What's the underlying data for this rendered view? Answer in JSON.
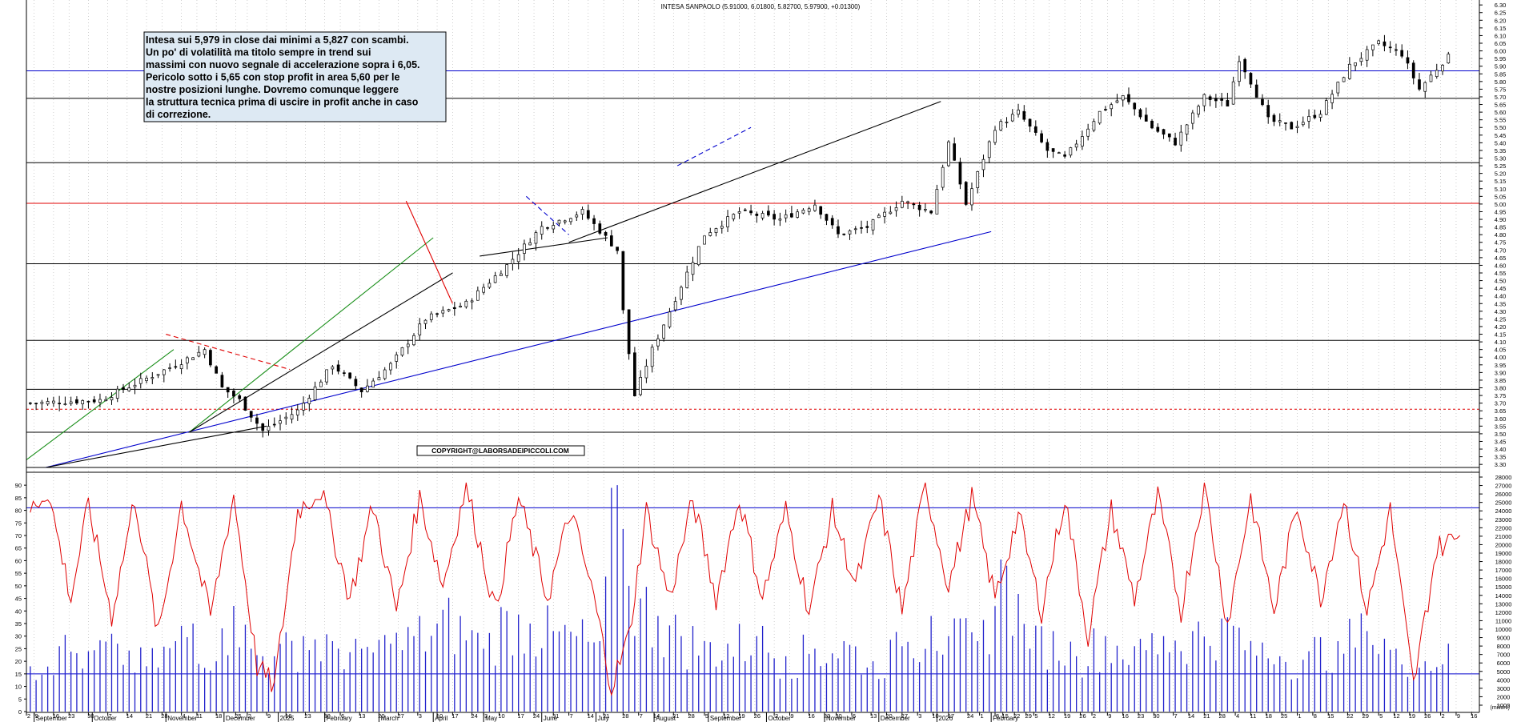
{
  "chart_data": [
    {
      "type": "candlestick",
      "title": "INTESA SANPAOLO (5.91000, 6.01800, 5.82700, 5.97900, +0.01300)",
      "ylim": [
        3.25,
        6.3
      ],
      "y_ticks": [
        "3.30",
        "3.35",
        "3.40",
        "3.45",
        "3.50",
        "3.55",
        "3.60",
        "3.65",
        "3.70",
        "3.75",
        "3.80",
        "3.85",
        "3.90",
        "3.95",
        "4.00",
        "4.05",
        "4.10",
        "4.15",
        "4.20",
        "4.25",
        "4.30",
        "4.35",
        "4.40",
        "4.45",
        "4.50",
        "4.55",
        "4.60",
        "4.65",
        "4.70",
        "4.75",
        "4.80",
        "4.85",
        "4.90",
        "4.95",
        "5.00",
        "5.05",
        "5.10",
        "5.15",
        "5.20",
        "5.25",
        "5.30",
        "5.35",
        "5.40",
        "5.45",
        "5.50",
        "5.55",
        "5.60",
        "5.65",
        "5.70",
        "5.75",
        "5.80",
        "5.85",
        "5.90",
        "5.95",
        "6.00",
        "6.05",
        "6.10",
        "6.15",
        "6.20",
        "6.25",
        "6.30"
      ],
      "price_path": [
        [
          0,
          3.7
        ],
        [
          12,
          3.72
        ],
        [
          25,
          3.95
        ],
        [
          30,
          4.05
        ],
        [
          33,
          3.8
        ],
        [
          36,
          3.72
        ],
        [
          40,
          3.52
        ],
        [
          46,
          3.65
        ],
        [
          52,
          3.95
        ],
        [
          57,
          3.78
        ],
        [
          62,
          3.95
        ],
        [
          68,
          4.25
        ],
        [
          75,
          4.35
        ],
        [
          82,
          4.6
        ],
        [
          88,
          4.85
        ],
        [
          95,
          4.95
        ],
        [
          101,
          4.7
        ],
        [
          102,
          4.3
        ],
        [
          104,
          3.75
        ],
        [
          107,
          4.05
        ],
        [
          110,
          4.3
        ],
        [
          116,
          4.8
        ],
        [
          122,
          4.95
        ],
        [
          129,
          4.9
        ],
        [
          135,
          5.0
        ],
        [
          139,
          4.8
        ],
        [
          144,
          4.85
        ],
        [
          150,
          5.02
        ],
        [
          155,
          4.95
        ],
        [
          158,
          5.4
        ],
        [
          161,
          5.0
        ],
        [
          166,
          5.5
        ],
        [
          170,
          5.6
        ],
        [
          175,
          5.35
        ],
        [
          178,
          5.3
        ],
        [
          184,
          5.6
        ],
        [
          188,
          5.7
        ],
        [
          193,
          5.5
        ],
        [
          197,
          5.4
        ],
        [
          202,
          5.7
        ],
        [
          206,
          5.65
        ],
        [
          208,
          5.95
        ],
        [
          210,
          5.8
        ],
        [
          213,
          5.55
        ],
        [
          217,
          5.5
        ],
        [
          222,
          5.6
        ],
        [
          227,
          5.9
        ],
        [
          232,
          6.05
        ],
        [
          236,
          5.98
        ],
        [
          239,
          5.75
        ],
        [
          244,
          5.97
        ]
      ],
      "price_high": 6.08,
      "price_low": 3.52,
      "last_close": 5.979,
      "horizontal_levels": [
        {
          "price": 5.87,
          "color": "#0000cc",
          "note": "blu"
        },
        {
          "price": 5.69,
          "color": "#000000"
        },
        {
          "price": 5.27,
          "color": "#000000"
        },
        {
          "price": 5.005,
          "color": "#e00000"
        },
        {
          "price": 4.61,
          "color": "#000000"
        },
        {
          "price": 4.11,
          "color": "#000000"
        },
        {
          "price": 3.79,
          "color": "#000000"
        },
        {
          "price": 3.66,
          "color": "#e00000",
          "dashed": true
        },
        {
          "price": 3.51,
          "color": "#000000"
        },
        {
          "price": 3.28,
          "color": "#000000"
        }
      ],
      "trendlines": [
        {
          "color": "#0000cc",
          "from": [
            5,
            3.28
          ],
          "to": [
            249,
            4.82
          ]
        },
        {
          "color": "#1a8f1a",
          "from": [
            0,
            3.33
          ],
          "to": [
            38,
            4.05
          ]
        },
        {
          "color": "#1a8f1a",
          "from": [
            42,
            3.51
          ],
          "to": [
            105,
            4.78
          ]
        },
        {
          "color": "#000000",
          "from": [
            42,
            3.51
          ],
          "to": [
            110,
            4.55
          ]
        },
        {
          "color": "#000000",
          "from": [
            5,
            3.28
          ],
          "to": [
            62,
            3.55
          ]
        },
        {
          "color": "#e00000",
          "from": [
            98,
            5.02
          ],
          "to": [
            110,
            4.35
          ]
        },
        {
          "color": "#e00000",
          "dashed": true,
          "from": [
            36,
            4.15
          ],
          "to": [
            68,
            3.92
          ]
        },
        {
          "color": "#000000",
          "from": [
            117,
            4.66
          ],
          "to": [
            150,
            4.78
          ]
        },
        {
          "color": "#000000",
          "from": [
            140,
            4.75
          ],
          "to": [
            236,
            5.67
          ]
        },
        {
          "color": "#0000cc",
          "dashed": true,
          "from": [
            129,
            5.05
          ],
          "to": [
            140,
            4.8
          ]
        },
        {
          "color": "#0000cc",
          "dashed": true,
          "from": [
            168,
            5.25
          ],
          "to": [
            187,
            5.5
          ]
        }
      ]
    },
    {
      "type": "bar+line",
      "ylim": [
        0,
        92
      ],
      "left_ticks": [
        "0",
        "5",
        "10",
        "15",
        "20",
        "25",
        "30",
        "35",
        "40",
        "45",
        "50",
        "55",
        "60",
        "65",
        "70",
        "75",
        "80",
        "85",
        "90"
      ],
      "right_ticks": [
        "1000",
        "2000",
        "3000",
        "4000",
        "5000",
        "6000",
        "7000",
        "8000",
        "9000",
        "10000",
        "11000",
        "12000",
        "13000",
        "14000",
        "15000",
        "16000",
        "17000",
        "18000",
        "19000",
        "20000",
        "21000",
        "22000",
        "23000",
        "24000",
        "25000",
        "26000",
        "27000",
        "28000"
      ],
      "right_bottom_label": "(milioni)",
      "reference_levels": [
        15,
        81
      ],
      "line_peaks": [
        [
          0,
          80
        ],
        [
          3,
          88
        ],
        [
          7,
          45
        ],
        [
          10,
          82
        ],
        [
          14,
          38
        ],
        [
          18,
          85
        ],
        [
          22,
          30
        ],
        [
          26,
          83
        ],
        [
          31,
          38
        ],
        [
          35,
          86
        ],
        [
          39,
          18
        ],
        [
          42,
          10
        ],
        [
          46,
          80
        ],
        [
          50,
          88
        ],
        [
          55,
          45
        ],
        [
          59,
          82
        ],
        [
          63,
          40
        ],
        [
          67,
          85
        ],
        [
          71,
          50
        ],
        [
          75,
          90
        ],
        [
          80,
          40
        ],
        [
          84,
          85
        ],
        [
          89,
          45
        ],
        [
          93,
          80
        ],
        [
          97,
          45
        ],
        [
          100,
          10
        ],
        [
          103,
          30
        ],
        [
          106,
          80
        ],
        [
          110,
          45
        ],
        [
          114,
          84
        ],
        [
          118,
          45
        ],
        [
          122,
          85
        ],
        [
          126,
          45
        ],
        [
          130,
          80
        ],
        [
          134,
          40
        ],
        [
          138,
          80
        ],
        [
          142,
          50
        ],
        [
          146,
          85
        ],
        [
          150,
          40
        ],
        [
          154,
          90
        ],
        [
          158,
          50
        ],
        [
          162,
          85
        ],
        [
          166,
          45
        ],
        [
          170,
          78
        ],
        [
          174,
          40
        ],
        [
          178,
          85
        ],
        [
          182,
          30
        ],
        [
          186,
          80
        ],
        [
          190,
          45
        ],
        [
          194,
          85
        ],
        [
          198,
          40
        ],
        [
          202,
          90
        ],
        [
          206,
          35
        ],
        [
          210,
          85
        ],
        [
          214,
          40
        ],
        [
          218,
          82
        ],
        [
          222,
          45
        ],
        [
          226,
          85
        ],
        [
          230,
          40
        ],
        [
          234,
          80
        ],
        [
          238,
          10
        ],
        [
          242,
          65
        ],
        [
          246,
          70
        ]
      ],
      "bar_values": [
        [
          0,
          18
        ],
        [
          5,
          26
        ],
        [
          10,
          24
        ],
        [
          15,
          27
        ],
        [
          20,
          18
        ],
        [
          25,
          28
        ],
        [
          28,
          35
        ],
        [
          32,
          20
        ],
        [
          35,
          42
        ],
        [
          38,
          25
        ],
        [
          42,
          22
        ],
        [
          47,
          30
        ],
        [
          52,
          28
        ],
        [
          57,
          25
        ],
        [
          62,
          27
        ],
        [
          66,
          30
        ],
        [
          70,
          35
        ],
        [
          74,
          38
        ],
        [
          78,
          25
        ],
        [
          82,
          40
        ],
        [
          86,
          35
        ],
        [
          90,
          32
        ],
        [
          94,
          30
        ],
        [
          98,
          28
        ],
        [
          101,
          90
        ],
        [
          103,
          50
        ],
        [
          105,
          45
        ],
        [
          108,
          38
        ],
        [
          112,
          30
        ],
        [
          116,
          28
        ],
        [
          120,
          27
        ],
        [
          125,
          30
        ],
        [
          130,
          22
        ],
        [
          135,
          25
        ],
        [
          140,
          28
        ],
        [
          145,
          20
        ],
        [
          150,
          26
        ],
        [
          155,
          38
        ],
        [
          158,
          30
        ],
        [
          163,
          28
        ],
        [
          168,
          58
        ],
        [
          172,
          25
        ],
        [
          176,
          32
        ],
        [
          180,
          22
        ],
        [
          185,
          30
        ],
        [
          190,
          26
        ],
        [
          195,
          30
        ],
        [
          200,
          32
        ],
        [
          205,
          37
        ],
        [
          210,
          28
        ],
        [
          215,
          22
        ],
        [
          220,
          24
        ],
        [
          225,
          28
        ],
        [
          230,
          32
        ],
        [
          235,
          25
        ],
        [
          240,
          20
        ],
        [
          244,
          27
        ]
      ]
    }
  ],
  "annotation_box": {
    "lines": [
      "Intesa sui 5,979 in close dai minimi a 5,827 con scambi.",
      "Un po' di volatilità ma titolo sempre in trend sui",
      "massimi con nuovo segnale di accelerazione sopra i 6,05.",
      "Pericolo sotto i 5,65 con stop profit in area 5,60 per le",
      "nostre posizioni lunghe. Dovremo comunque leggere",
      "la struttura tecnica prima di uscire in profit anche in caso",
      "di correzione."
    ],
    "background": "#dde9f3"
  },
  "copyright": "COPYRIGHT@LABORSADEIPICCOLI.COM",
  "x_axis": {
    "day_ticks": [
      [
        0,
        "2"
      ],
      [
        2,
        "9"
      ],
      [
        7,
        "16"
      ],
      [
        11,
        "23"
      ],
      [
        16,
        "30"
      ],
      [
        21,
        "7"
      ],
      [
        26,
        "14"
      ],
      [
        31,
        "21"
      ],
      [
        35,
        "28"
      ],
      [
        40,
        "4"
      ],
      [
        44,
        "11"
      ],
      [
        49,
        "18"
      ],
      [
        54,
        "25"
      ],
      [
        57,
        "2"
      ],
      [
        62,
        "9"
      ],
      [
        67,
        "16"
      ],
      [
        72,
        "23"
      ],
      [
        77,
        "30"
      ],
      [
        81,
        "6"
      ],
      [
        86,
        "13"
      ],
      [
        91,
        "20"
      ],
      [
        96,
        "27"
      ],
      [
        101,
        "3"
      ],
      [
        106,
        "10"
      ],
      [
        110,
        "17"
      ],
      [
        115,
        "24"
      ],
      [
        118,
        "3"
      ],
      [
        122,
        "10"
      ],
      [
        127,
        "17"
      ],
      [
        131,
        "24"
      ],
      [
        136,
        "31"
      ],
      [
        140,
        "7"
      ],
      [
        145,
        "14"
      ],
      [
        149,
        "21"
      ],
      [
        154,
        "28"
      ],
      [
        158,
        "7"
      ],
      [
        162,
        "14"
      ],
      [
        167,
        "21"
      ],
      [
        171,
        "28"
      ],
      [
        175,
        "5"
      ],
      [
        180,
        "12"
      ],
      [
        184,
        "19"
      ],
      [
        188,
        "26"
      ],
      [
        193,
        "2"
      ],
      [
        197,
        "9"
      ],
      [
        202,
        "16"
      ],
      [
        206,
        "23"
      ],
      [
        209,
        "30"
      ],
      [
        213,
        "6"
      ],
      [
        218,
        "13"
      ],
      [
        222,
        "20"
      ],
      [
        226,
        "27"
      ],
      [
        230,
        "3"
      ],
      [
        234,
        "10"
      ],
      [
        238,
        "17"
      ],
      [
        243,
        "24"
      ],
      [
        246,
        "1"
      ],
      [
        250,
        "8"
      ],
      [
        252,
        "15"
      ],
      [
        255,
        "22"
      ],
      [
        258,
        "29"
      ],
      [
        260,
        "5"
      ],
      [
        264,
        "12"
      ],
      [
        268,
        "19"
      ],
      [
        272,
        "26"
      ],
      [
        275,
        "2"
      ],
      [
        279,
        "9"
      ],
      [
        283,
        "16"
      ],
      [
        287,
        "23"
      ],
      [
        291,
        "30"
      ],
      [
        296,
        "7"
      ],
      [
        300,
        "14"
      ],
      [
        304,
        "21"
      ],
      [
        308,
        "28"
      ],
      [
        312,
        "4"
      ],
      [
        316,
        "11"
      ],
      [
        320,
        "18"
      ],
      [
        324,
        "25"
      ],
      [
        328,
        "1"
      ],
      [
        332,
        "8"
      ],
      [
        336,
        "15"
      ],
      [
        341,
        "22"
      ],
      [
        345,
        "29"
      ],
      [
        349,
        "5"
      ],
      [
        353,
        "12"
      ],
      [
        357,
        "19"
      ],
      [
        361,
        "26"
      ],
      [
        365,
        "2"
      ],
      [
        369,
        "9"
      ],
      [
        373,
        "16"
      ]
    ],
    "month_labels": [
      [
        2,
        "September"
      ],
      [
        17,
        "October"
      ],
      [
        36,
        "November"
      ],
      [
        51,
        "December"
      ],
      [
        65,
        "2025"
      ],
      [
        77,
        "February"
      ],
      [
        91,
        "March"
      ],
      [
        105,
        "April"
      ],
      [
        118,
        "May"
      ],
      [
        133,
        "June"
      ],
      [
        147,
        "July"
      ],
      [
        162,
        "August"
      ],
      [
        176,
        "September"
      ],
      [
        191,
        "October"
      ],
      [
        206,
        "November"
      ],
      [
        220,
        "December"
      ],
      [
        235,
        "2026"
      ],
      [
        249,
        "February"
      ]
    ]
  }
}
